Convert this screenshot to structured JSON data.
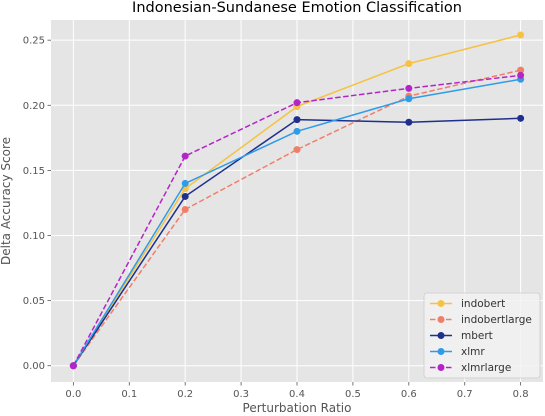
{
  "chart_data": {
    "type": "line",
    "title": "Indonesian-Sundanese Emotion Classification",
    "xlabel": "Perturbation Ratio",
    "ylabel": "Delta Accuracy Score",
    "x": [
      0.0,
      0.2,
      0.4,
      0.6,
      0.8
    ],
    "xlim": [
      -0.04,
      0.84
    ],
    "ylim": [
      -0.0125,
      0.2655
    ],
    "xticks": [
      "0.0",
      "0.1",
      "0.2",
      "0.3",
      "0.4",
      "0.5",
      "0.6",
      "0.7",
      "0.8"
    ],
    "yticks": [
      "0.00",
      "0.05",
      "0.10",
      "0.15",
      "0.20",
      "0.25"
    ],
    "grid": true,
    "legend_position": "bottom-right",
    "series": [
      {
        "name": "indobert",
        "values": [
          0.0,
          0.136,
          0.199,
          0.232,
          0.254
        ],
        "color": "#f5c242",
        "dash": "solid"
      },
      {
        "name": "indobertlarge",
        "values": [
          0.0,
          0.12,
          0.166,
          0.207,
          0.227
        ],
        "color": "#f07f6a",
        "dash": "dashed"
      },
      {
        "name": "mbert",
        "values": [
          0.0,
          0.13,
          0.189,
          0.187,
          0.19
        ],
        "color": "#1f2f8c",
        "dash": "solid"
      },
      {
        "name": "xlmr",
        "values": [
          0.0,
          0.14,
          0.18,
          0.205,
          0.22
        ],
        "color": "#2e9ce8",
        "dash": "solid"
      },
      {
        "name": "xlmrlarge",
        "values": [
          0.0,
          0.161,
          0.202,
          0.213,
          0.223
        ],
        "color": "#b524c9",
        "dash": "dashed"
      }
    ]
  }
}
